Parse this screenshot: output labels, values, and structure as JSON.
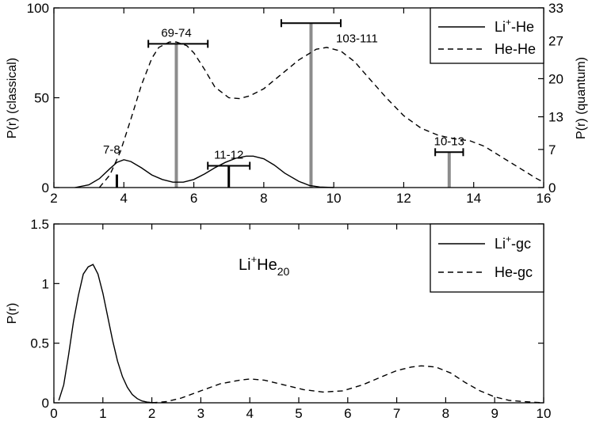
{
  "chart_data": [
    {
      "type": "line",
      "xlim": [
        2,
        16
      ],
      "ylim": [
        0,
        100
      ],
      "y2lim": [
        0,
        33
      ],
      "xticks": [
        "2",
        "4",
        "6",
        "8",
        "10",
        "12",
        "14",
        "16"
      ],
      "yticks": [
        "0",
        "50",
        "100"
      ],
      "y2ticks": [
        "0",
        "7",
        "13",
        "20",
        "27",
        "33"
      ],
      "ylabel": "P(r) (classical)",
      "y2label": "P(r) (quantum)",
      "legend_position": "top-right",
      "series": [
        {
          "name_base": "Li",
          "name_sup": "+",
          "name_tail": "-He",
          "style": "solid",
          "x": [
            2.6,
            3.0,
            3.3,
            3.6,
            3.8,
            4.0,
            4.2,
            4.5,
            4.8,
            5.1,
            5.4,
            5.7,
            6.0,
            6.3,
            6.6,
            6.9,
            7.2,
            7.5,
            7.7,
            8.0,
            8.3,
            8.6,
            9.0,
            9.3,
            9.6,
            10.0
          ],
          "y": [
            0,
            1.5,
            5,
            10.5,
            14,
            15.5,
            14.5,
            11,
            7,
            4.5,
            3,
            3,
            4.5,
            7.5,
            11,
            14,
            16.3,
            17.5,
            17.5,
            16,
            12.5,
            8,
            3.5,
            1.2,
            0.3,
            0
          ]
        },
        {
          "name": "He-He",
          "style": "dashed",
          "x": [
            3.3,
            3.6,
            3.9,
            4.2,
            4.5,
            4.8,
            5.0,
            5.3,
            5.5,
            5.8,
            6.0,
            6.3,
            6.6,
            7.0,
            7.3,
            7.6,
            8.0,
            8.5,
            9.0,
            9.5,
            9.8,
            10.2,
            10.6,
            11.0,
            11.5,
            12.0,
            12.5,
            13.0,
            13.5,
            13.9,
            14.3,
            14.8,
            15.3,
            15.8,
            16.0
          ],
          "y": [
            0,
            7,
            20,
            38,
            57,
            72,
            78,
            81,
            81,
            79,
            75,
            66,
            56,
            50,
            49.5,
            51,
            55,
            63,
            71,
            77,
            78,
            76,
            70,
            61,
            50,
            40,
            33,
            29,
            27,
            26,
            23,
            17,
            11,
            5,
            3
          ]
        }
      ],
      "quantum_bars": [
        {
          "x": 3.8,
          "height": 2.4,
          "style": "black"
        },
        {
          "x": 5.5,
          "height": 26.4,
          "style": "gray",
          "label": "69-74",
          "err_lo": 4.7,
          "err_hi": 6.4
        },
        {
          "x": 7.0,
          "height": 4.0,
          "style": "black",
          "label": "11-12",
          "err_lo": 6.4,
          "err_hi": 7.6
        },
        {
          "x": 9.35,
          "height": 30.2,
          "style": "gray",
          "label": "103-111",
          "err_lo": 8.5,
          "err_hi": 10.2
        },
        {
          "x": 13.3,
          "height": 6.5,
          "style": "gray",
          "label": "10-13",
          "err_lo": 12.9,
          "err_hi": 13.7
        }
      ],
      "annotations": [
        {
          "text": "7-8",
          "x": 3.65,
          "y": 19
        }
      ]
    },
    {
      "type": "line",
      "xlim": [
        0,
        10
      ],
      "ylim": [
        0,
        1.5
      ],
      "xticks": [
        "0",
        "1",
        "2",
        "3",
        "4",
        "5",
        "6",
        "7",
        "8",
        "9",
        "10"
      ],
      "yticks": [
        "0",
        "0.5",
        "1",
        "1.5"
      ],
      "ylabel": "P(r)",
      "legend_position": "top-right",
      "system_label": {
        "base": "Li",
        "sup": "+",
        "mid": "He",
        "sub": "20"
      },
      "series": [
        {
          "name_base": "Li",
          "name_sup": "+",
          "name_tail": "-gc",
          "style": "solid",
          "x": [
            0.1,
            0.2,
            0.3,
            0.4,
            0.5,
            0.6,
            0.7,
            0.8,
            0.9,
            1.0,
            1.1,
            1.2,
            1.3,
            1.4,
            1.5,
            1.6,
            1.7,
            1.8,
            1.9,
            2.0,
            2.1
          ],
          "y": [
            0.02,
            0.15,
            0.4,
            0.68,
            0.9,
            1.08,
            1.14,
            1.16,
            1.08,
            0.92,
            0.72,
            0.52,
            0.35,
            0.22,
            0.13,
            0.07,
            0.035,
            0.015,
            0.006,
            0.002,
            0
          ]
        },
        {
          "name": "He-gc",
          "style": "dashed",
          "x": [
            2.0,
            2.3,
            2.6,
            3.0,
            3.4,
            3.8,
            4.0,
            4.3,
            4.7,
            5.1,
            5.5,
            5.9,
            6.3,
            6.7,
            7.0,
            7.3,
            7.5,
            7.8,
            8.1,
            8.4,
            8.7,
            9.0,
            9.3,
            9.6,
            10.0
          ],
          "y": [
            0,
            0.01,
            0.04,
            0.1,
            0.16,
            0.19,
            0.2,
            0.19,
            0.15,
            0.11,
            0.09,
            0.1,
            0.15,
            0.22,
            0.27,
            0.3,
            0.31,
            0.3,
            0.25,
            0.17,
            0.1,
            0.05,
            0.02,
            0.01,
            0
          ]
        }
      ]
    }
  ]
}
